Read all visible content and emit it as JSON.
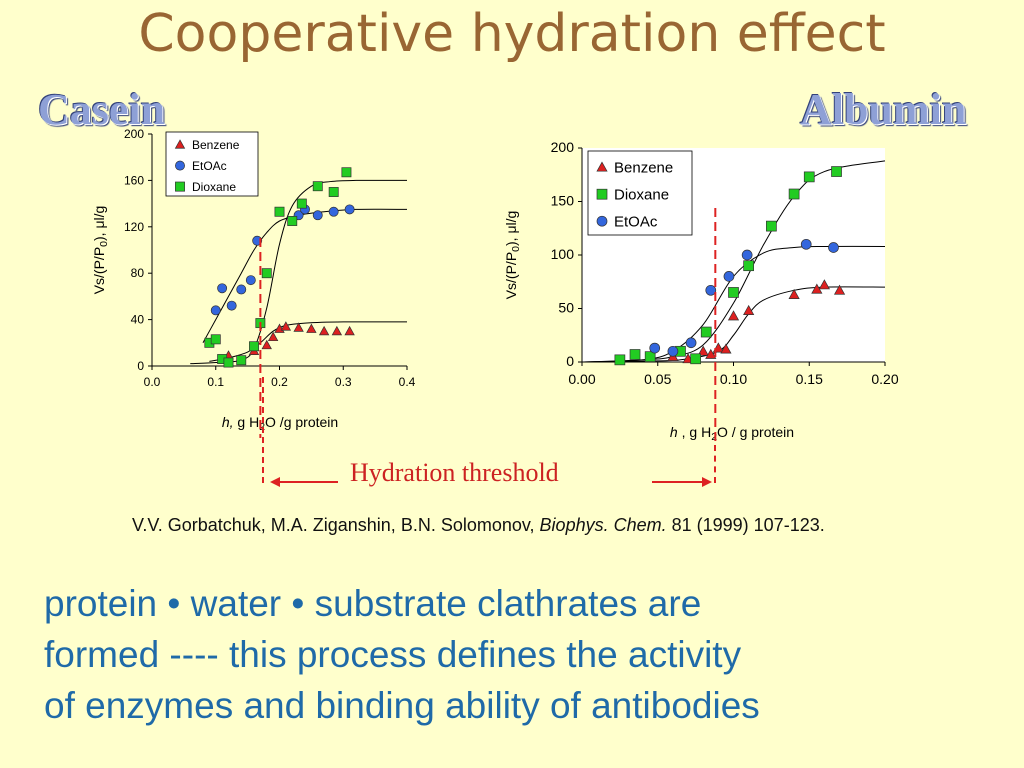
{
  "slide": {
    "title": "Cooperative hydration effect",
    "casein_label": "Casein",
    "albumin_label": "Albumin",
    "threshold_label": "Hydration threshold",
    "citation": {
      "authors": "V.V. Gorbatchuk, M.A. Ziganshin, B.N. Solomonov, ",
      "journal": "Biophys. Chem.",
      "rest": " 81 (1999) 107-123."
    },
    "statement_lines": [
      "protein • water • substrate  clathrates are",
      "formed   ----   this process defines the activity",
      "of enzymes and binding ability of antibodies"
    ]
  },
  "colors": {
    "benzene": "#dd2020",
    "etoac": "#3366dd",
    "dioxane": "#22cc22",
    "threshold": "#dd2222",
    "title": "#996633",
    "statement": "#1f6aa8"
  },
  "chart_data": [
    {
      "type": "scatter",
      "title": "Casein",
      "ylabel_main": "Vs/(P/P",
      "ylabel_sub": "0",
      "ylabel_tail": "), μl/g",
      "xlabel_h": "h,",
      "xlabel_rest_a": " g H",
      "xlabel_sub": "2",
      "xlabel_rest_b": "O /g protein",
      "xlim": [
        0.0,
        0.4
      ],
      "ylim": [
        0,
        200
      ],
      "xticks": [
        "0.0",
        "0.1",
        "0.2",
        "0.3",
        "0.4"
      ],
      "yticks": [
        "0",
        "40",
        "80",
        "120",
        "160",
        "200"
      ],
      "threshold_x": 0.17,
      "legend": [
        "Benzene",
        "EtOAc",
        "Dioxane"
      ],
      "series": [
        {
          "name": "Benzene",
          "marker": "triangle",
          "color": "#dd2020",
          "points": [
            [
              0.12,
              9
            ],
            [
              0.16,
              13
            ],
            [
              0.18,
              18
            ],
            [
              0.19,
              25
            ],
            [
              0.2,
              32
            ],
            [
              0.21,
              34
            ],
            [
              0.23,
              33
            ],
            [
              0.25,
              32
            ],
            [
              0.27,
              30
            ],
            [
              0.29,
              30
            ],
            [
              0.31,
              30
            ]
          ],
          "fit": [
            [
              0.09,
              4
            ],
            [
              0.12,
              7
            ],
            [
              0.15,
              12
            ],
            [
              0.17,
              20
            ],
            [
              0.19,
              30
            ],
            [
              0.21,
              35
            ],
            [
              0.24,
              37
            ],
            [
              0.3,
              38
            ],
            [
              0.4,
              38
            ]
          ]
        },
        {
          "name": "EtOAc",
          "marker": "circle",
          "color": "#3366dd",
          "points": [
            [
              0.1,
              48
            ],
            [
              0.11,
              67
            ],
            [
              0.125,
              52
            ],
            [
              0.14,
              66
            ],
            [
              0.155,
              74
            ],
            [
              0.165,
              108
            ],
            [
              0.23,
              130
            ],
            [
              0.24,
              135
            ],
            [
              0.26,
              130
            ],
            [
              0.285,
              133
            ],
            [
              0.31,
              135
            ]
          ],
          "fit": [
            [
              0.08,
              20
            ],
            [
              0.1,
              40
            ],
            [
              0.12,
              60
            ],
            [
              0.14,
              80
            ],
            [
              0.16,
              100
            ],
            [
              0.18,
              115
            ],
            [
              0.2,
              125
            ],
            [
              0.23,
              130
            ],
            [
              0.27,
              133
            ],
            [
              0.32,
              135
            ],
            [
              0.4,
              135
            ]
          ]
        },
        {
          "name": "Dioxane",
          "marker": "square",
          "color": "#22cc22",
          "points": [
            [
              0.09,
              20
            ],
            [
              0.1,
              23
            ],
            [
              0.11,
              6
            ],
            [
              0.12,
              3
            ],
            [
              0.14,
              5
            ],
            [
              0.16,
              17
            ],
            [
              0.17,
              37
            ],
            [
              0.18,
              80
            ],
            [
              0.2,
              133
            ],
            [
              0.22,
              125
            ],
            [
              0.235,
              140
            ],
            [
              0.26,
              155
            ],
            [
              0.285,
              150
            ],
            [
              0.305,
              167
            ]
          ],
          "fit": [
            [
              0.06,
              2
            ],
            [
              0.1,
              3
            ],
            [
              0.14,
              5
            ],
            [
              0.16,
              15
            ],
            [
              0.18,
              50
            ],
            [
              0.2,
              105
            ],
            [
              0.22,
              138
            ],
            [
              0.25,
              155
            ],
            [
              0.28,
              159
            ],
            [
              0.32,
              160
            ],
            [
              0.4,
              160
            ]
          ]
        }
      ]
    },
    {
      "type": "scatter",
      "title": "Albumin",
      "ylabel_main": "Vs/(P/P",
      "ylabel_sub": "0",
      "ylabel_tail": "), μl/g",
      "xlabel_h": "h",
      "xlabel_rest_a": " , g H",
      "xlabel_sub": "2",
      "xlabel_rest_b": "O / g protein",
      "xlim": [
        0.0,
        0.2
      ],
      "ylim": [
        0,
        200
      ],
      "xticks": [
        "0.00",
        "0.05",
        "0.10",
        "0.15",
        "0.20"
      ],
      "yticks": [
        "0",
        "50",
        "100",
        "150",
        "200"
      ],
      "threshold_x": 0.088,
      "legend": [
        "Benzene",
        "Dioxane",
        "EtOAc"
      ],
      "series": [
        {
          "name": "Benzene",
          "marker": "triangle",
          "color": "#dd2020",
          "points": [
            [
              0.06,
              5
            ],
            [
              0.07,
              3
            ],
            [
              0.08,
              10
            ],
            [
              0.085,
              7
            ],
            [
              0.09,
              13
            ],
            [
              0.095,
              12
            ],
            [
              0.1,
              43
            ],
            [
              0.11,
              48
            ],
            [
              0.14,
              63
            ],
            [
              0.155,
              68
            ],
            [
              0.16,
              72
            ],
            [
              0.17,
              67
            ]
          ],
          "fit": [
            [
              0.0,
              0
            ],
            [
              0.05,
              1
            ],
            [
              0.07,
              3
            ],
            [
              0.09,
              10
            ],
            [
              0.1,
              25
            ],
            [
              0.11,
              45
            ],
            [
              0.12,
              58
            ],
            [
              0.14,
              67
            ],
            [
              0.16,
              70
            ],
            [
              0.2,
              70
            ]
          ]
        },
        {
          "name": "Dioxane",
          "marker": "square",
          "color": "#22cc22",
          "points": [
            [
              0.025,
              2
            ],
            [
              0.035,
              7
            ],
            [
              0.045,
              5
            ],
            [
              0.065,
              10
            ],
            [
              0.075,
              3
            ],
            [
              0.082,
              28
            ],
            [
              0.1,
              65
            ],
            [
              0.11,
              90
            ],
            [
              0.125,
              127
            ],
            [
              0.14,
              157
            ],
            [
              0.15,
              173
            ],
            [
              0.168,
              178
            ]
          ],
          "fit": [
            [
              0.0,
              0
            ],
            [
              0.04,
              2
            ],
            [
              0.06,
              5
            ],
            [
              0.08,
              16
            ],
            [
              0.1,
              55
            ],
            [
              0.12,
              110
            ],
            [
              0.14,
              155
            ],
            [
              0.16,
              178
            ],
            [
              0.2,
              188
            ]
          ]
        },
        {
          "name": "EtOAc",
          "marker": "circle",
          "color": "#3366dd",
          "points": [
            [
              0.048,
              13
            ],
            [
              0.06,
              10
            ],
            [
              0.072,
              18
            ],
            [
              0.085,
              67
            ],
            [
              0.097,
              80
            ],
            [
              0.109,
              100
            ],
            [
              0.148,
              110
            ],
            [
              0.166,
              107
            ]
          ],
          "fit": [
            [
              0.0,
              0
            ],
            [
              0.04,
              2
            ],
            [
              0.06,
              10
            ],
            [
              0.08,
              35
            ],
            [
              0.1,
              80
            ],
            [
              0.12,
              102
            ],
            [
              0.14,
              107
            ],
            [
              0.16,
              108
            ],
            [
              0.2,
              108
            ]
          ]
        }
      ]
    }
  ]
}
